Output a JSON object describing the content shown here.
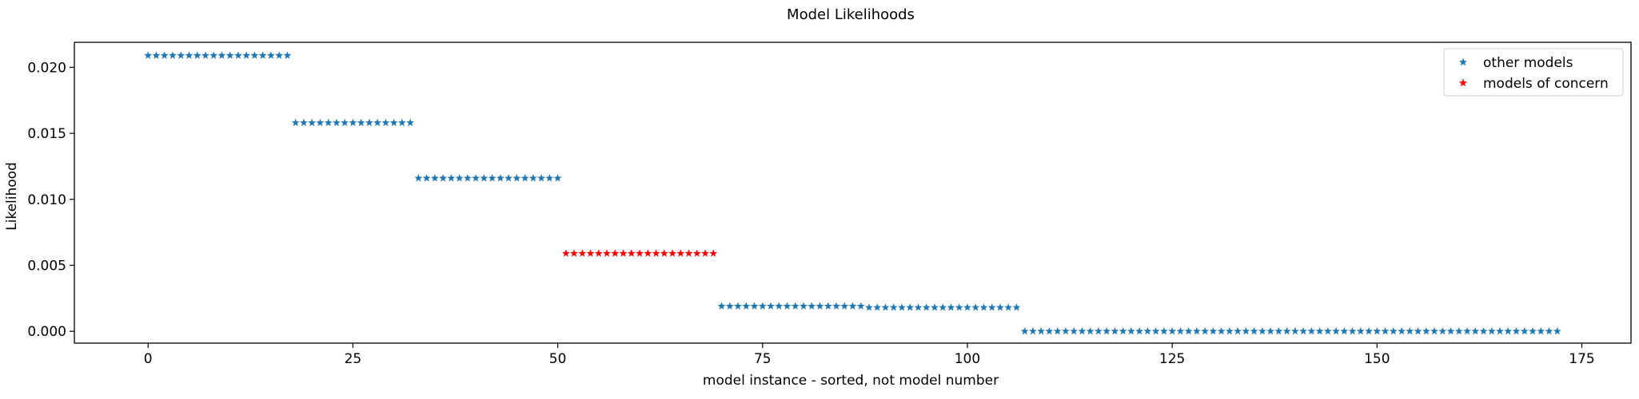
{
  "chart_data": {
    "type": "scatter",
    "title": "Model Likelihoods",
    "xlabel": "model instance - sorted, not model number",
    "ylabel": "Likelihood",
    "xlim": [
      -9,
      181
    ],
    "ylim": [
      -0.0009,
      0.0219
    ],
    "xticks": [
      0,
      25,
      50,
      75,
      100,
      125,
      150,
      175
    ],
    "xtick_labels": [
      "0",
      "25",
      "50",
      "75",
      "100",
      "125",
      "150",
      "175"
    ],
    "yticks": [
      0.0,
      0.005,
      0.01,
      0.015,
      0.02
    ],
    "ytick_labels": [
      "0.000",
      "0.005",
      "0.010",
      "0.015",
      "0.020"
    ],
    "grid": false,
    "legend_position": "upper right",
    "marker": "star",
    "series": [
      {
        "name": "other models",
        "color": "#1f77b4",
        "groups": [
          {
            "x_start": 0,
            "x_end": 17,
            "y": 0.0209
          },
          {
            "x_start": 18,
            "x_end": 32,
            "y": 0.0158
          },
          {
            "x_start": 33,
            "x_end": 50,
            "y": 0.0116
          },
          {
            "x_start": 70,
            "x_end": 87,
            "y": 0.0019
          },
          {
            "x_start": 88,
            "x_end": 106,
            "y": 0.0018
          },
          {
            "x_start": 107,
            "x_end": 172,
            "y": 0.0
          }
        ]
      },
      {
        "name": "models of concern",
        "color": "#ff0000",
        "groups": [
          {
            "x_start": 51,
            "x_end": 69,
            "y": 0.0059
          }
        ]
      }
    ]
  }
}
